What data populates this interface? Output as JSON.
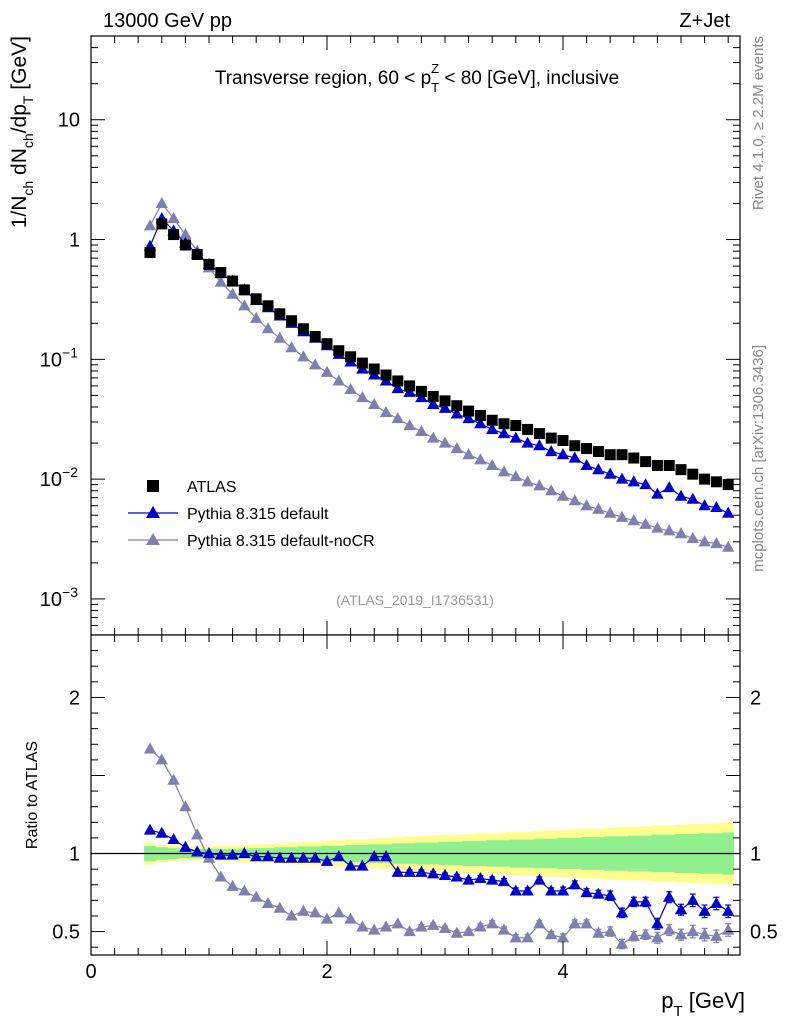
{
  "header": {
    "energy_label": "13000 GeV pp",
    "process_label": "Z+Jet"
  },
  "side_labels": {
    "rivet": "Rivet 4.1.0, ≥ 2.2M events",
    "mcplots": "mcplots.cern.ch [arXiv:1306.3436]"
  },
  "colors": {
    "atlas": "#000000",
    "default": "#0000cc",
    "nocr": "#8080b0",
    "band_inner": "#90f090",
    "band_outer": "#ffff90"
  },
  "chart_data": [
    {
      "type": "scatter",
      "title": "Transverse region, 60 < p_T^Z < 80 [GeV], inclusive",
      "title_parts": {
        "pre": "Transverse region, 60 < p",
        "sub": "T",
        "sup": "Z",
        "post": " < 80 [GeV], inclusive"
      },
      "ylabel": "1/N_ch dN_ch/dp_T [GeV]",
      "ylabel_parts": {
        "p1": "1/N",
        "s1": "ch",
        "p2": " dN",
        "s2": "ch",
        "p3": "/dp",
        "s3": "T",
        "p4": " [GeV]"
      },
      "yscale": "log",
      "ylim": [
        0.0005,
        50
      ],
      "xlim": [
        0,
        5.5
      ],
      "y_ticks": [
        {
          "value": 10,
          "label": "10"
        },
        {
          "value": 1,
          "label": "1"
        },
        {
          "value": 0.1,
          "label": "10",
          "exp": "−1"
        },
        {
          "value": 0.01,
          "label": "10",
          "exp": "−2"
        },
        {
          "value": 0.001,
          "label": "10",
          "exp": "−3"
        }
      ],
      "x": [
        0.5,
        0.6,
        0.7,
        0.8,
        0.9,
        1.0,
        1.1,
        1.2,
        1.3,
        1.4,
        1.5,
        1.6,
        1.7,
        1.8,
        1.9,
        2.0,
        2.1,
        2.2,
        2.3,
        2.4,
        2.5,
        2.6,
        2.7,
        2.8,
        2.9,
        3.0,
        3.1,
        3.2,
        3.3,
        3.4,
        3.5,
        3.6,
        3.7,
        3.8,
        3.9,
        4.0,
        4.1,
        4.2,
        4.3,
        4.4,
        4.5,
        4.6,
        4.7,
        4.8,
        4.9,
        5.0,
        5.1,
        5.2,
        5.3,
        5.4
      ],
      "series": [
        {
          "name": "ATLAS",
          "marker": "square",
          "values": [
            0.78,
            1.35,
            1.1,
            0.9,
            0.75,
            0.62,
            0.53,
            0.45,
            0.38,
            0.32,
            0.28,
            0.24,
            0.21,
            0.18,
            0.155,
            0.135,
            0.118,
            0.105,
            0.093,
            0.083,
            0.074,
            0.066,
            0.06,
            0.054,
            0.049,
            0.045,
            0.041,
            0.037,
            0.034,
            0.031,
            0.029,
            0.028,
            0.026,
            0.024,
            0.022,
            0.021,
            0.019,
            0.018,
            0.017,
            0.016,
            0.016,
            0.015,
            0.014,
            0.013,
            0.013,
            0.012,
            0.011,
            0.01,
            0.0095,
            0.009
          ]
        },
        {
          "name": "Pythia 8.315 default",
          "marker": "triangle",
          "values": [
            0.88,
            1.5,
            1.18,
            0.93,
            0.76,
            0.62,
            0.52,
            0.45,
            0.38,
            0.31,
            0.27,
            0.23,
            0.2,
            0.17,
            0.15,
            0.13,
            0.11,
            0.095,
            0.083,
            0.074,
            0.066,
            0.057,
            0.053,
            0.048,
            0.042,
            0.039,
            0.035,
            0.032,
            0.029,
            0.026,
            0.024,
            0.022,
            0.02,
            0.019,
            0.017,
            0.016,
            0.015,
            0.013,
            0.012,
            0.011,
            0.01,
            0.0095,
            0.009,
            0.0075,
            0.0085,
            0.0072,
            0.0068,
            0.006,
            0.0058,
            0.0052
          ]
        },
        {
          "name": "Pythia 8.315 default-noCR",
          "marker": "triangle",
          "values": [
            1.3,
            2.0,
            1.5,
            1.1,
            0.8,
            0.58,
            0.44,
            0.35,
            0.28,
            0.22,
            0.18,
            0.15,
            0.125,
            0.105,
            0.09,
            0.078,
            0.066,
            0.056,
            0.048,
            0.042,
            0.036,
            0.032,
            0.028,
            0.025,
            0.022,
            0.02,
            0.018,
            0.016,
            0.0145,
            0.013,
            0.0115,
            0.0105,
            0.0095,
            0.0088,
            0.008,
            0.0072,
            0.0066,
            0.006,
            0.0056,
            0.0052,
            0.0048,
            0.0045,
            0.0042,
            0.0039,
            0.0037,
            0.0035,
            0.0032,
            0.003,
            0.0029,
            0.0027
          ]
        }
      ],
      "legend": [
        {
          "label": "ATLAS",
          "marker": "square"
        },
        {
          "label": "Pythia 8.315 default",
          "marker": "triangle"
        },
        {
          "label": "Pythia 8.315 default-noCR",
          "marker": "triangle"
        }
      ],
      "legend_position": "bottom-left",
      "annotation": "(ATLAS_2019_I1736531)"
    },
    {
      "type": "scatter",
      "ylabel": "Ratio to ATLAS",
      "xlabel": "p_T [GeV]",
      "xlabel_parts": {
        "main": "p",
        "sub": "T",
        "post": " [GeV]"
      },
      "xlim": [
        0,
        5.5
      ],
      "ylim": [
        0.35,
        2.4
      ],
      "x_ticks": [
        0,
        2,
        4
      ],
      "y_ticks": [
        0.5,
        1,
        2
      ],
      "y_tick_labels": [
        "0.5",
        "1",
        "2"
      ],
      "x": [
        0.5,
        0.6,
        0.7,
        0.8,
        0.9,
        1.0,
        1.1,
        1.2,
        1.3,
        1.4,
        1.5,
        1.6,
        1.7,
        1.8,
        1.9,
        2.0,
        2.1,
        2.2,
        2.3,
        2.4,
        2.5,
        2.6,
        2.7,
        2.8,
        2.9,
        3.0,
        3.1,
        3.2,
        3.3,
        3.4,
        3.5,
        3.6,
        3.7,
        3.8,
        3.9,
        4.0,
        4.1,
        4.2,
        4.3,
        4.4,
        4.5,
        4.6,
        4.7,
        4.8,
        4.9,
        5.0,
        5.1,
        5.2,
        5.3,
        5.4
      ],
      "series": [
        {
          "name": "Pythia 8.315 default",
          "values": [
            1.15,
            1.13,
            1.09,
            1.04,
            1.01,
            1.0,
            0.99,
            0.99,
            1.0,
            0.98,
            0.98,
            0.97,
            0.97,
            0.97,
            0.97,
            0.95,
            0.98,
            0.92,
            0.92,
            0.98,
            0.98,
            0.88,
            0.88,
            0.88,
            0.87,
            0.86,
            0.85,
            0.83,
            0.84,
            0.83,
            0.82,
            0.76,
            0.76,
            0.83,
            0.76,
            0.76,
            0.8,
            0.75,
            0.74,
            0.73,
            0.62,
            0.69,
            0.69,
            0.55,
            0.72,
            0.64,
            0.7,
            0.63,
            0.68,
            0.63
          ],
          "errors": [
            0.01,
            0.01,
            0.01,
            0.01,
            0.01,
            0.01,
            0.01,
            0.01,
            0.01,
            0.01,
            0.01,
            0.01,
            0.01,
            0.01,
            0.01,
            0.01,
            0.01,
            0.01,
            0.01,
            0.01,
            0.01,
            0.01,
            0.015,
            0.015,
            0.015,
            0.015,
            0.015,
            0.015,
            0.02,
            0.02,
            0.02,
            0.02,
            0.02,
            0.02,
            0.02,
            0.025,
            0.025,
            0.025,
            0.025,
            0.03,
            0.03,
            0.03,
            0.03,
            0.035,
            0.035,
            0.035,
            0.04,
            0.04,
            0.04,
            0.04
          ]
        },
        {
          "name": "Pythia 8.315 default-noCR",
          "values": [
            1.67,
            1.6,
            1.47,
            1.3,
            1.12,
            0.97,
            0.85,
            0.79,
            0.76,
            0.72,
            0.68,
            0.65,
            0.6,
            0.63,
            0.62,
            0.58,
            0.62,
            0.58,
            0.53,
            0.51,
            0.53,
            0.55,
            0.5,
            0.53,
            0.54,
            0.52,
            0.49,
            0.5,
            0.53,
            0.55,
            0.51,
            0.46,
            0.46,
            0.55,
            0.48,
            0.46,
            0.55,
            0.55,
            0.49,
            0.5,
            0.42,
            0.47,
            0.48,
            0.46,
            0.51,
            0.48,
            0.5,
            0.48,
            0.47,
            0.51
          ],
          "errors": [
            0.01,
            0.01,
            0.01,
            0.01,
            0.01,
            0.01,
            0.01,
            0.01,
            0.01,
            0.01,
            0.01,
            0.01,
            0.01,
            0.01,
            0.01,
            0.01,
            0.01,
            0.01,
            0.01,
            0.01,
            0.01,
            0.01,
            0.015,
            0.015,
            0.015,
            0.015,
            0.015,
            0.015,
            0.02,
            0.02,
            0.02,
            0.02,
            0.02,
            0.02,
            0.02,
            0.025,
            0.025,
            0.025,
            0.025,
            0.03,
            0.03,
            0.03,
            0.03,
            0.035,
            0.035,
            0.035,
            0.04,
            0.04,
            0.04,
            0.04
          ]
        }
      ],
      "band_inner": [
        0.05,
        0.04,
        0.035,
        0.03,
        0.03,
        0.03,
        0.03,
        0.03,
        0.03,
        0.035,
        0.035,
        0.04,
        0.04,
        0.045,
        0.045,
        0.05,
        0.05,
        0.055,
        0.055,
        0.06,
        0.06,
        0.065,
        0.065,
        0.07,
        0.07,
        0.075,
        0.075,
        0.08,
        0.08,
        0.085,
        0.085,
        0.09,
        0.09,
        0.095,
        0.095,
        0.1,
        0.1,
        0.105,
        0.105,
        0.11,
        0.11,
        0.115,
        0.115,
        0.12,
        0.12,
        0.125,
        0.125,
        0.13,
        0.13,
        0.135
      ],
      "band_outer": [
        0.07,
        0.055,
        0.05,
        0.045,
        0.045,
        0.045,
        0.05,
        0.05,
        0.055,
        0.06,
        0.06,
        0.065,
        0.07,
        0.075,
        0.075,
        0.08,
        0.085,
        0.09,
        0.09,
        0.095,
        0.1,
        0.105,
        0.11,
        0.11,
        0.115,
        0.12,
        0.12,
        0.125,
        0.13,
        0.13,
        0.135,
        0.14,
        0.14,
        0.145,
        0.15,
        0.15,
        0.155,
        0.16,
        0.16,
        0.165,
        0.17,
        0.17,
        0.175,
        0.18,
        0.18,
        0.185,
        0.19,
        0.19,
        0.195,
        0.2
      ]
    }
  ]
}
